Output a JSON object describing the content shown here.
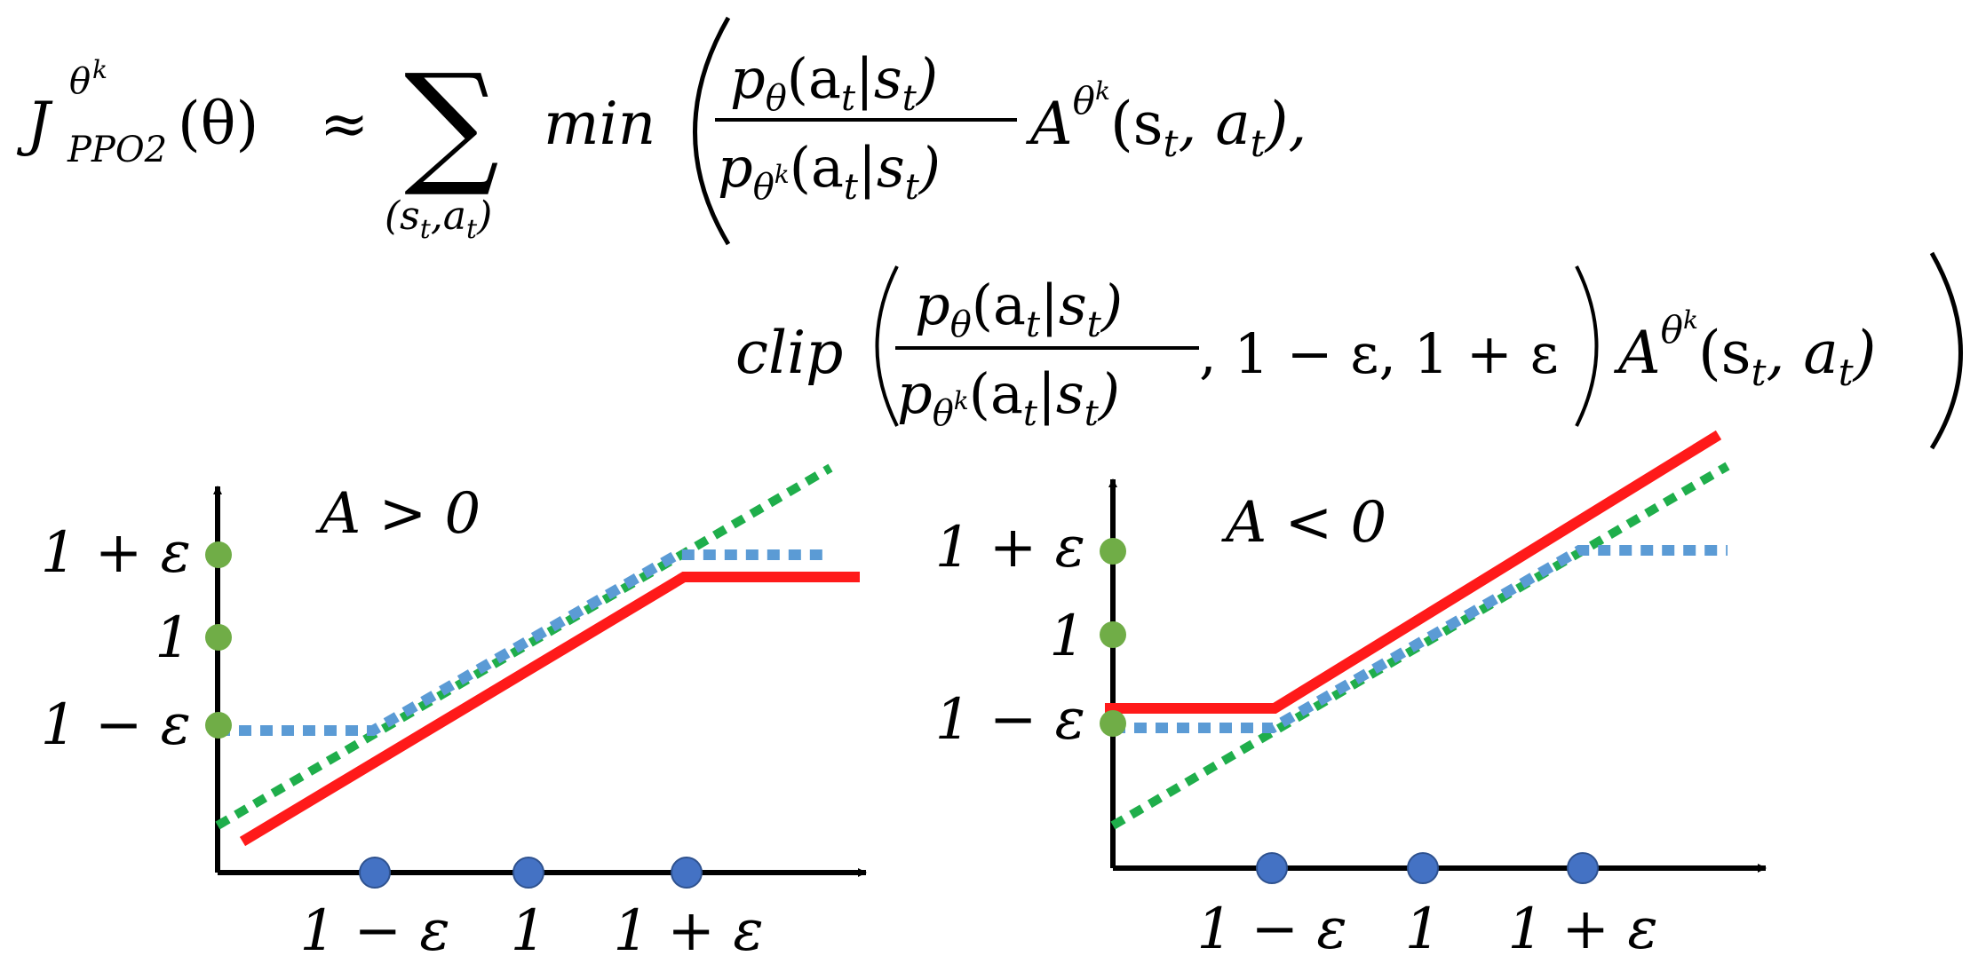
{
  "formula": {
    "lhs_J": "J",
    "lhs_sup": "θ",
    "lhs_supsup": "k",
    "lhs_sub": "PPO2",
    "lhs_arg": "(θ)",
    "approx": "≈",
    "sum_symbol": "∑",
    "sum_index": "(s",
    "sum_index_t": "t",
    "sum_index_mid": ",a",
    "sum_index_t2": "t",
    "sum_index_end": ")",
    "min_label": "min",
    "clip_label": "clip",
    "ratio_numerator": "p",
    "ratio_numerator_sub": "θ",
    "ratio_args": "(a",
    "ratio_args_t": "t",
    "ratio_args_bar": "|s",
    "ratio_args_t2": "t",
    "ratio_args_end": ")",
    "ratio_denominator_sub": "θ",
    "ratio_denominator_subsup": "k",
    "advantage": "A",
    "advantage_sup": "θ",
    "advantage_supsup": "k",
    "advantage_args": "(s",
    "advantage_args_t": "t",
    "advantage_args_mid": ", a",
    "advantage_args_t2": "t",
    "advantage_args_end": ")",
    "comma_after_min_term": ",",
    "clip_bounds": ", 1 − ε, 1 + ε"
  },
  "plots": [
    {
      "title": "A > 0",
      "y_ticks": [
        "1 + ε",
        "1",
        "1 − ε"
      ],
      "x_ticks": [
        "1 − ε",
        "1",
        "1 + ε"
      ]
    },
    {
      "title": "A < 0",
      "y_ticks": [
        "1 + ε",
        "1",
        "1 − ε"
      ],
      "x_ticks": [
        "1 − ε",
        "1",
        "1 + ε"
      ]
    }
  ],
  "colors": {
    "red_line": "#ff1a1a",
    "blue_dotted": "#5b9bd5",
    "green_dotted": "#1fae4b",
    "green_dot": "#70ad47",
    "blue_dot": "#4472c4",
    "axis": "#000000"
  }
}
